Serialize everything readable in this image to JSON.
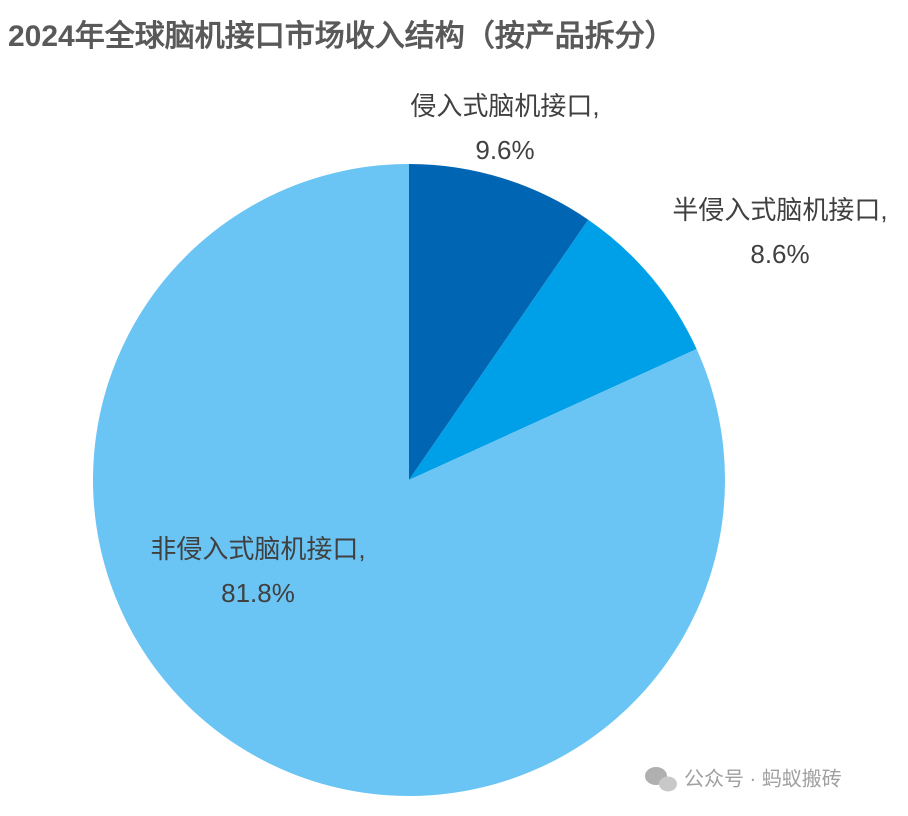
{
  "chart_data": {
    "type": "pie",
    "title": "2024年全球脑机接口市场收入结构（按产品拆分）",
    "categories": [
      "侵入式脑机接口,",
      "半侵入式脑机接口,",
      "非侵入式脑机接口,"
    ],
    "values": [
      9.6,
      8.6,
      81.8
    ],
    "value_labels": [
      "9.6%",
      "8.6%",
      "81.8%"
    ],
    "colors": [
      "#0066b3",
      "#00a0e9",
      "#6ac5f4"
    ],
    "watermark": "公众号 · 蚂蚁搬砖"
  }
}
